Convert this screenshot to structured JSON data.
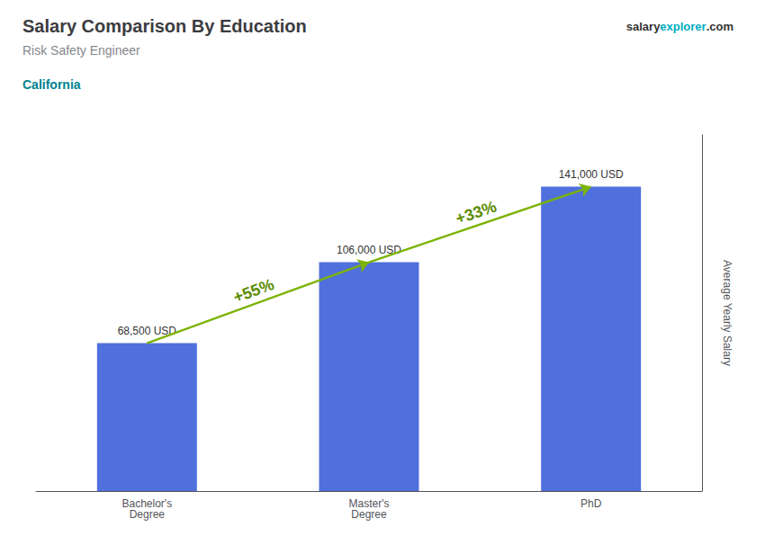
{
  "chart_data": {
    "type": "bar",
    "title": "Salary Comparison By Education",
    "subtitle": "Risk Safety Engineer",
    "categories": [
      "Bachelor's\nDegree",
      "Master's\nDegree",
      "PhD"
    ],
    "values": [
      68500,
      106000,
      141000
    ],
    "value_labels": [
      "68,500 USD",
      "106,000 USD",
      "141,000 USD"
    ],
    "data_labels": true,
    "ylabel": "Average Yearly Salary",
    "ylim": [
      0,
      165000
    ],
    "tick_labels": "x",
    "grid": false,
    "annotations": [
      {
        "text": "California"
      },
      {
        "text": [
          "salary",
          "explorer",
          ".com"
        ]
      },
      {
        "text": "+55%",
        "from": "Bachelor's\nDegree",
        "to": "Master's\nDegree"
      },
      {
        "text": "+33%",
        "from": "Master's\nDegree",
        "to": "PhD"
      }
    ]
  }
}
